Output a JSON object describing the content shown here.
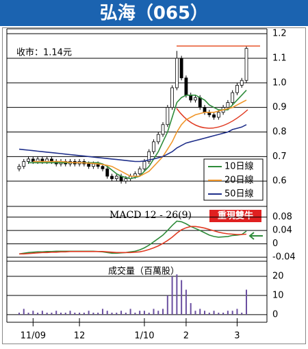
{
  "header": {
    "title": "弘海（065）"
  },
  "chart_data": [
    {
      "type": "candlestick",
      "annotation": "收市：1.14元",
      "open": [
        0.65,
        0.66,
        0.68,
        0.69,
        0.68,
        0.69,
        0.68,
        0.69,
        0.68,
        0.67,
        0.68,
        0.67,
        0.68,
        0.67,
        0.68,
        0.67,
        0.66,
        0.67,
        0.66,
        0.65,
        0.62,
        0.61,
        0.62,
        0.6,
        0.61,
        0.62,
        0.63,
        0.65,
        0.68,
        0.72,
        0.76,
        0.79,
        0.83,
        0.9,
        0.98,
        1.1,
        1.02,
        0.95,
        0.93,
        0.94,
        0.9,
        0.88,
        0.87,
        0.86,
        0.88,
        0.9,
        0.92,
        0.96,
        0.99,
        1.01
      ],
      "high": [
        0.67,
        0.69,
        0.7,
        0.7,
        0.7,
        0.7,
        0.7,
        0.7,
        0.69,
        0.69,
        0.69,
        0.69,
        0.69,
        0.69,
        0.69,
        0.68,
        0.68,
        0.68,
        0.67,
        0.66,
        0.63,
        0.63,
        0.63,
        0.62,
        0.63,
        0.64,
        0.66,
        0.69,
        0.73,
        0.77,
        0.8,
        0.84,
        0.91,
        0.99,
        1.13,
        1.11,
        1.03,
        0.96,
        0.95,
        0.95,
        0.91,
        0.89,
        0.88,
        0.89,
        0.91,
        0.93,
        0.97,
        1.0,
        1.02,
        1.15
      ],
      "low": [
        0.64,
        0.65,
        0.67,
        0.67,
        0.67,
        0.67,
        0.67,
        0.67,
        0.66,
        0.66,
        0.66,
        0.66,
        0.66,
        0.66,
        0.66,
        0.65,
        0.65,
        0.65,
        0.64,
        0.61,
        0.6,
        0.6,
        0.59,
        0.59,
        0.6,
        0.61,
        0.62,
        0.64,
        0.67,
        0.71,
        0.75,
        0.78,
        0.82,
        0.89,
        0.97,
        1.01,
        0.94,
        0.92,
        0.92,
        0.89,
        0.87,
        0.86,
        0.85,
        0.85,
        0.87,
        0.89,
        0.91,
        0.95,
        0.98,
        1.0
      ],
      "close": [
        0.66,
        0.68,
        0.69,
        0.68,
        0.69,
        0.68,
        0.69,
        0.68,
        0.67,
        0.68,
        0.67,
        0.68,
        0.67,
        0.68,
        0.67,
        0.66,
        0.67,
        0.66,
        0.65,
        0.62,
        0.61,
        0.62,
        0.6,
        0.61,
        0.62,
        0.63,
        0.65,
        0.68,
        0.72,
        0.76,
        0.79,
        0.83,
        0.9,
        0.98,
        1.1,
        1.02,
        0.95,
        0.93,
        0.94,
        0.9,
        0.88,
        0.87,
        0.86,
        0.88,
        0.9,
        0.92,
        0.96,
        0.99,
        1.01,
        1.14
      ],
      "series": [
        {
          "name": "10日線",
          "color": "#2e8b3a",
          "values": [
            null,
            null,
            0.675,
            0.675,
            0.675,
            0.675,
            0.675,
            0.675,
            0.675,
            0.675,
            0.675,
            0.675,
            0.675,
            0.675,
            0.675,
            0.675,
            0.675,
            0.675,
            0.67,
            0.66,
            0.645,
            0.63,
            0.62,
            0.615,
            0.61,
            0.615,
            0.62,
            0.64,
            0.66,
            0.69,
            0.72,
            0.76,
            0.8,
            0.86,
            0.92,
            0.94,
            0.95,
            0.95,
            0.95,
            0.94,
            0.93,
            0.91,
            0.9,
            0.89,
            0.89,
            0.89,
            0.91,
            0.93,
            0.95,
            0.97
          ]
        },
        {
          "name": "20日線",
          "color": "#f0962a",
          "values": [
            null,
            null,
            null,
            0.68,
            0.68,
            0.68,
            0.68,
            0.68,
            0.68,
            0.68,
            0.678,
            0.676,
            0.675,
            0.675,
            0.674,
            0.673,
            0.672,
            0.67,
            0.668,
            0.664,
            0.66,
            0.65,
            0.64,
            0.63,
            0.62,
            0.62,
            0.62,
            0.63,
            0.64,
            0.66,
            0.68,
            0.7,
            0.73,
            0.76,
            0.8,
            0.83,
            0.85,
            0.86,
            0.87,
            0.875,
            0.88,
            0.88,
            0.88,
            0.885,
            0.89,
            0.895,
            0.9,
            0.91,
            0.92,
            0.93
          ]
        },
        {
          "name": "50日線",
          "color": "#1f2f8a",
          "values": [
            0.73,
            0.728,
            0.726,
            0.724,
            0.722,
            0.72,
            0.718,
            0.716,
            0.714,
            0.712,
            0.71,
            0.708,
            0.706,
            0.704,
            0.702,
            0.7,
            0.698,
            0.696,
            0.694,
            0.692,
            0.69,
            0.688,
            0.686,
            0.684,
            0.682,
            0.68,
            0.68,
            0.682,
            0.686,
            0.69,
            0.695,
            0.7,
            0.71,
            0.72,
            0.735,
            0.745,
            0.755,
            0.76,
            0.765,
            0.77,
            0.775,
            0.78,
            0.785,
            0.79,
            0.795,
            0.8,
            0.81,
            0.815,
            0.82,
            0.83
          ]
        }
      ],
      "ylim": [
        0.5,
        1.22
      ],
      "yticks": [
        0.6,
        0.7,
        0.8,
        0.9,
        {
          "value": 1,
          "label": "1.0"
        },
        1.1,
        1.2
      ],
      "grid": true
    },
    {
      "type": "line",
      "title": "MACD 12 - 26(9)",
      "annotation": "重現雙牛",
      "series": [
        {
          "color": "#2e8b3a",
          "values": [
            -0.03,
            -0.028,
            -0.026,
            -0.025,
            -0.024,
            -0.024,
            -0.023,
            -0.023,
            -0.022,
            -0.022,
            -0.022,
            -0.022,
            -0.022,
            -0.022,
            -0.022,
            -0.022,
            -0.022,
            -0.023,
            -0.024,
            -0.026,
            -0.028,
            -0.028,
            -0.027,
            -0.026,
            -0.024,
            -0.022,
            -0.018,
            -0.012,
            -0.004,
            0.006,
            0.016,
            0.026,
            0.04,
            0.055,
            0.068,
            0.066,
            0.06,
            0.052,
            0.046,
            0.04,
            0.033,
            0.026,
            0.022,
            0.02,
            0.021,
            0.022,
            0.025,
            0.026,
            0.028,
            0.038
          ]
        },
        {
          "color": "#e03a22",
          "values": [
            -0.03,
            -0.03,
            -0.029,
            -0.028,
            -0.027,
            -0.026,
            -0.026,
            -0.025,
            -0.025,
            -0.024,
            -0.024,
            -0.023,
            -0.023,
            -0.023,
            -0.023,
            -0.023,
            -0.023,
            -0.023,
            -0.023,
            -0.024,
            -0.025,
            -0.026,
            -0.026,
            -0.026,
            -0.026,
            -0.025,
            -0.024,
            -0.021,
            -0.017,
            -0.012,
            -0.006,
            0.001,
            0.01,
            0.02,
            0.032,
            0.042,
            0.048,
            0.052,
            0.052,
            0.05,
            0.047,
            0.043,
            0.039,
            0.035,
            0.032,
            0.03,
            0.029,
            0.028,
            0.028,
            0.029
          ]
        }
      ],
      "ylim": [
        -0.05,
        0.11
      ],
      "yticks": [
        0.08,
        0.04,
        0,
        -0.04
      ],
      "grid": true
    },
    {
      "type": "bar",
      "title": "成交量（百萬股）",
      "color": "#6a4fa0",
      "categories": [
        null,
        null,
        null,
        "11/09",
        null,
        null,
        null,
        null,
        null,
        null,
        null,
        null,
        null,
        "12",
        null,
        null,
        null,
        null,
        null,
        null,
        null,
        null,
        null,
        null,
        null,
        null,
        null,
        "1/10",
        null,
        null,
        null,
        null,
        null,
        null,
        null,
        null,
        "2",
        null,
        null,
        null,
        null,
        null,
        null,
        null,
        null,
        null,
        null,
        "3",
        null,
        null
      ],
      "values": [
        1,
        3,
        1,
        2,
        1,
        2,
        1,
        1,
        2,
        1,
        1,
        2,
        1,
        1,
        1,
        2,
        1,
        1,
        3,
        2,
        1,
        1,
        2,
        1,
        3,
        1,
        2,
        2,
        1,
        3,
        2,
        3,
        10,
        20,
        21,
        18,
        13,
        6,
        2,
        3,
        2,
        1,
        2,
        1,
        1,
        2,
        2,
        3,
        1,
        13
      ],
      "ylim": [
        -4,
        27.5
      ],
      "yticks": [
        20,
        10,
        0
      ],
      "grid": true
    }
  ]
}
